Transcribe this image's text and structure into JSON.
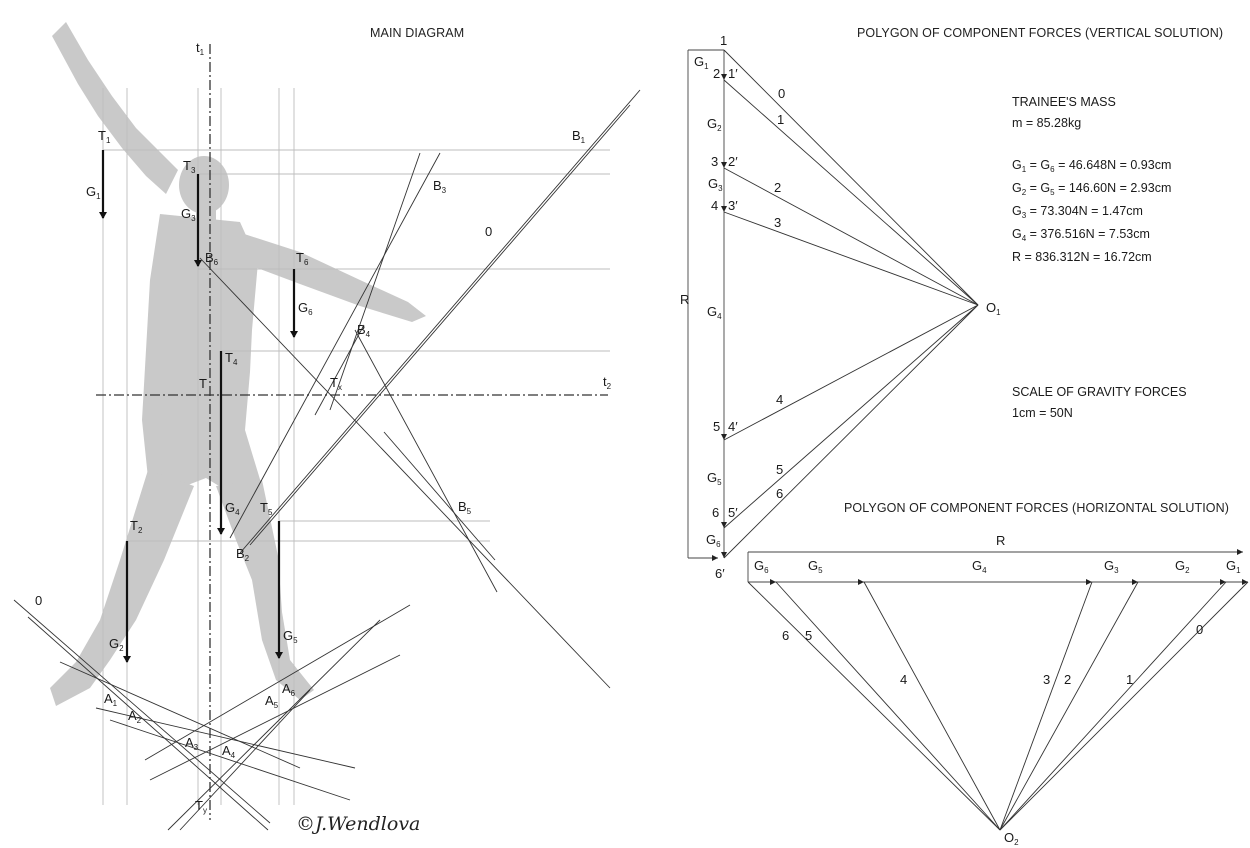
{
  "main": {
    "title": "MAIN DIAGRAM",
    "copyright": "©J.Wendlova",
    "axis_t1": {
      "base": "t",
      "sub": "1"
    },
    "axis_t2": {
      "base": "t",
      "sub": "2"
    },
    "centroid_label": "T",
    "tx_label": {
      "base": "T",
      "sub": "x"
    },
    "ty_label": {
      "base": "T",
      "sub": "y"
    },
    "string_label_top": "0",
    "string_label_bottom": "0",
    "points_T": [
      {
        "base": "T",
        "sub": "1"
      },
      {
        "base": "T",
        "sub": "3"
      },
      {
        "base": "T",
        "sub": "6"
      },
      {
        "base": "T",
        "sub": "4"
      },
      {
        "base": "T",
        "sub": "5"
      },
      {
        "base": "T",
        "sub": "2"
      }
    ],
    "forces_G": [
      {
        "base": "G",
        "sub": "1"
      },
      {
        "base": "G",
        "sub": "3"
      },
      {
        "base": "G",
        "sub": "6"
      },
      {
        "base": "G",
        "sub": "4"
      },
      {
        "base": "G",
        "sub": "5"
      },
      {
        "base": "G",
        "sub": "2"
      }
    ],
    "points_B": [
      {
        "base": "B",
        "sub": "1"
      },
      {
        "base": "B",
        "sub": "3"
      },
      {
        "base": "B",
        "sub": "6"
      },
      {
        "base": "B",
        "sub": "4"
      },
      {
        "base": "B",
        "sub": "5"
      },
      {
        "base": "B",
        "sub": "2"
      }
    ],
    "points_A": [
      {
        "base": "A",
        "sub": "1"
      },
      {
        "base": "A",
        "sub": "2"
      },
      {
        "base": "A",
        "sub": "3"
      },
      {
        "base": "A",
        "sub": "4"
      },
      {
        "base": "A",
        "sub": "5"
      },
      {
        "base": "A",
        "sub": "6"
      }
    ]
  },
  "vertical": {
    "title": "POLYGON OF COMPONENT FORCES (VERTICAL SOLUTION)",
    "resultant": "R",
    "pole": {
      "base": "O",
      "sub": "1"
    },
    "left_numbers": [
      "1",
      "2",
      "3",
      "4",
      "5",
      "6"
    ],
    "primes": [
      "1′",
      "2′",
      "3′",
      "4′",
      "5′",
      "6′"
    ],
    "g_labels": [
      {
        "base": "G",
        "sub": "1"
      },
      {
        "base": "G",
        "sub": "2"
      },
      {
        "base": "G",
        "sub": "3"
      },
      {
        "base": "G",
        "sub": "4"
      },
      {
        "base": "G",
        "sub": "5"
      },
      {
        "base": "G",
        "sub": "6"
      }
    ],
    "ray_labels": [
      "0",
      "1",
      "2",
      "3",
      "4",
      "5",
      "6"
    ]
  },
  "info": {
    "mass_title": "TRAINEE'S MASS",
    "mass_value": "m = 85.28kg",
    "lines": [
      {
        "base": "G",
        "sub": "1",
        "mid": " = G",
        "sub2": "6",
        "rest": " = 46.648N = 0.93cm"
      },
      {
        "base": "G",
        "sub": "2",
        "mid": " = G",
        "sub2": "5",
        "rest": " = 146.60N = 2.93cm"
      },
      {
        "base": "G",
        "sub": "3",
        "mid": "",
        "sub2": "",
        "rest": " = 73.304N = 1.47cm"
      },
      {
        "base": "G",
        "sub": "4",
        "mid": "",
        "sub2": "",
        "rest": " = 376.516N = 7.53cm"
      },
      {
        "base": "R",
        "sub": "",
        "mid": "",
        "sub2": "",
        "rest": " = 836.312N = 16.72cm"
      }
    ],
    "scale_title": "SCALE OF GRAVITY FORCES",
    "scale_value": "1cm = 50N"
  },
  "horizontal": {
    "title": "POLYGON OF COMPONENT FORCES (HORIZONTAL SOLUTION)",
    "resultant": "R",
    "pole": {
      "base": "O",
      "sub": "2"
    },
    "g_labels": [
      {
        "base": "G",
        "sub": "6"
      },
      {
        "base": "G",
        "sub": "5"
      },
      {
        "base": "G",
        "sub": "4"
      },
      {
        "base": "G",
        "sub": "3"
      },
      {
        "base": "G",
        "sub": "2"
      },
      {
        "base": "G",
        "sub": "1"
      }
    ],
    "ray_labels": [
      "6",
      "5",
      "4",
      "3",
      "2",
      "1",
      "0"
    ]
  }
}
